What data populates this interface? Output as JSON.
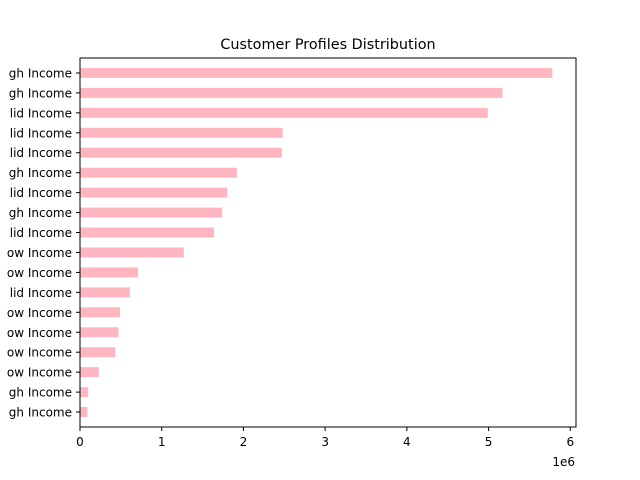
{
  "chart_data": {
    "type": "bar",
    "orientation": "horizontal",
    "title": "Customer Profiles Distribution",
    "xlabel": "",
    "ylabel": "",
    "x_offset_label": "1e6",
    "xlim": [
      0,
      6070000
    ],
    "xticks": [
      0,
      1,
      2,
      3,
      4,
      5,
      6
    ],
    "xtick_labels": [
      "0",
      "1",
      "2",
      "3",
      "4",
      "5",
      "6"
    ],
    "bar_color": "#ffb6c1",
    "grid": false,
    "legend": "none",
    "categories": [
      "gh Income",
      "gh Income",
      "lid Income",
      "lid Income",
      "lid Income",
      "gh Income",
      "lid Income",
      "gh Income",
      "lid Income",
      "ow Income",
      "ow Income",
      "lid Income",
      "ow Income",
      "ow Income",
      "ow Income",
      "ow Income",
      "gh Income",
      "gh Income"
    ],
    "values": [
      5780000,
      5170000,
      4990000,
      2480000,
      2470000,
      1920000,
      1800000,
      1740000,
      1640000,
      1270000,
      710000,
      610000,
      490000,
      470000,
      430000,
      230000,
      100000,
      90000
    ]
  }
}
